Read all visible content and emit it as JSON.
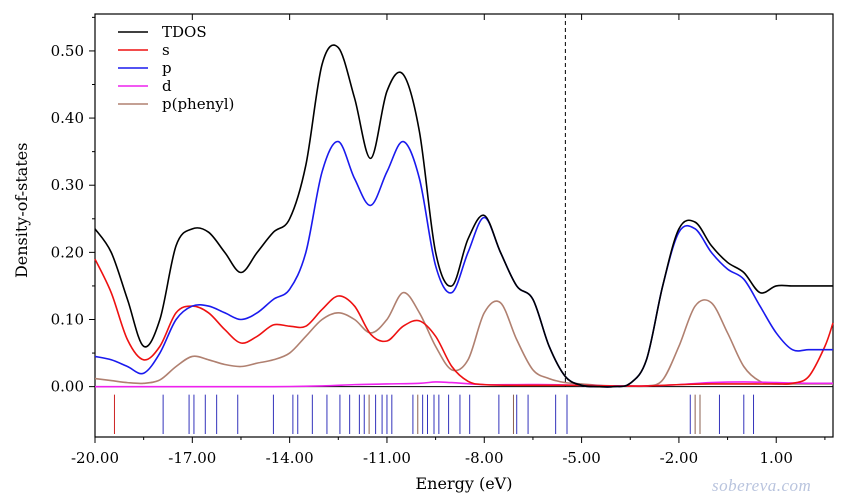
{
  "chart_data": {
    "type": "line",
    "xlabel": "Energy (eV)",
    "ylabel": "Density-of-states",
    "xlim": [
      -20.0,
      2.75
    ],
    "ylim": [
      -0.075,
      0.555
    ],
    "xticks": [
      -20,
      -17,
      -14,
      -11,
      -8,
      -5,
      -2,
      1
    ],
    "xtick_labels": [
      "-20.00",
      "-17.00",
      "-14.00",
      "-11.00",
      "-8.00",
      "-5.00",
      "-2.00",
      "1.00"
    ],
    "yticks": [
      0.0,
      0.1,
      0.2,
      0.3,
      0.4,
      0.5
    ],
    "ytick_labels": [
      "0.00",
      "0.10",
      "0.20",
      "0.30",
      "0.40",
      "0.50"
    ],
    "homo_line_x": -5.5,
    "legend_position": "top-left",
    "series": [
      {
        "name": "TDOS",
        "color": "#000000",
        "x": [
          -20.0,
          -19.5,
          -19.0,
          -18.5,
          -18.0,
          -17.5,
          -17.0,
          -16.5,
          -16.0,
          -15.5,
          -15.0,
          -14.5,
          -14.0,
          -13.5,
          -13.0,
          -12.5,
          -12.0,
          -11.5,
          -11.0,
          -10.5,
          -10.0,
          -9.5,
          -9.0,
          -8.5,
          -8.0,
          -7.5,
          -7.0,
          -6.5,
          -6.0,
          -5.5,
          -5.0,
          -4.5,
          -4.0,
          -3.5,
          -3.0,
          -2.5,
          -2.0,
          -1.5,
          -1.0,
          -0.5,
          0.0,
          0.5,
          1.0,
          1.5,
          2.0,
          2.5,
          2.75
        ],
        "y": [
          0.235,
          0.2,
          0.13,
          0.06,
          0.1,
          0.21,
          0.235,
          0.23,
          0.2,
          0.17,
          0.2,
          0.23,
          0.25,
          0.33,
          0.48,
          0.505,
          0.43,
          0.34,
          0.44,
          0.465,
          0.38,
          0.2,
          0.15,
          0.22,
          0.255,
          0.2,
          0.15,
          0.13,
          0.06,
          0.015,
          0.002,
          0.0,
          0.0,
          0.005,
          0.04,
          0.15,
          0.235,
          0.245,
          0.21,
          0.185,
          0.17,
          0.14,
          0.15,
          0.15,
          0.15,
          0.15,
          0.15
        ]
      },
      {
        "name": "s",
        "color": "#ee1111",
        "x": [
          -20.0,
          -19.5,
          -19.0,
          -18.5,
          -18.0,
          -17.5,
          -17.0,
          -16.5,
          -16.0,
          -15.5,
          -15.0,
          -14.5,
          -14.0,
          -13.5,
          -13.0,
          -12.5,
          -12.0,
          -11.5,
          -11.0,
          -10.5,
          -10.0,
          -9.5,
          -9.0,
          -8.5,
          -8.0,
          -7.0,
          -6.0,
          -5.0,
          -4.0,
          -3.0,
          -2.0,
          -1.0,
          0.0,
          1.0,
          1.5,
          2.0,
          2.5,
          2.75
        ],
        "y": [
          0.19,
          0.14,
          0.07,
          0.04,
          0.06,
          0.11,
          0.12,
          0.11,
          0.085,
          0.065,
          0.075,
          0.092,
          0.09,
          0.09,
          0.115,
          0.135,
          0.12,
          0.078,
          0.068,
          0.09,
          0.098,
          0.075,
          0.03,
          0.008,
          0.003,
          0.002,
          0.002,
          0.002,
          0.001,
          0.001,
          0.003,
          0.004,
          0.004,
          0.004,
          0.005,
          0.015,
          0.06,
          0.095
        ]
      },
      {
        "name": "p",
        "color": "#1a1aee",
        "x": [
          -20.0,
          -19.5,
          -19.0,
          -18.5,
          -18.0,
          -17.5,
          -17.0,
          -16.5,
          -16.0,
          -15.5,
          -15.0,
          -14.5,
          -14.0,
          -13.5,
          -13.0,
          -12.5,
          -12.0,
          -11.5,
          -11.0,
          -10.5,
          -10.0,
          -9.5,
          -9.0,
          -8.5,
          -8.0,
          -7.5,
          -7.0,
          -6.5,
          -6.0,
          -5.5,
          -5.0,
          -4.5,
          -4.0,
          -3.5,
          -3.0,
          -2.5,
          -2.0,
          -1.5,
          -1.0,
          -0.5,
          0.0,
          0.5,
          1.0,
          1.5,
          2.0,
          2.5,
          2.75
        ],
        "y": [
          0.045,
          0.04,
          0.03,
          0.02,
          0.05,
          0.1,
          0.12,
          0.12,
          0.11,
          0.1,
          0.11,
          0.13,
          0.145,
          0.2,
          0.32,
          0.365,
          0.31,
          0.27,
          0.32,
          0.365,
          0.31,
          0.18,
          0.14,
          0.2,
          0.252,
          0.2,
          0.15,
          0.13,
          0.06,
          0.015,
          0.002,
          0.0,
          0.0,
          0.005,
          0.04,
          0.15,
          0.23,
          0.235,
          0.2,
          0.175,
          0.16,
          0.12,
          0.08,
          0.055,
          0.055,
          0.055,
          0.055
        ]
      },
      {
        "name": "d",
        "color": "#ee22ee",
        "x": [
          -20.0,
          -16.0,
          -14.5,
          -13.0,
          -12.0,
          -11.0,
          -10.0,
          -9.5,
          -9.0,
          -8.0,
          -7.0,
          -6.0,
          -5.0,
          -4.0,
          -3.0,
          -2.0,
          -1.0,
          0.0,
          1.0,
          2.0,
          2.75
        ],
        "y": [
          0.0,
          0.0,
          0.0,
          0.001,
          0.003,
          0.004,
          0.005,
          0.007,
          0.006,
          0.003,
          0.003,
          0.003,
          0.002,
          0.001,
          0.001,
          0.003,
          0.006,
          0.007,
          0.006,
          0.005,
          0.005
        ]
      },
      {
        "name": "p(phenyl)",
        "color": "#b08070",
        "x": [
          -20.0,
          -19.5,
          -19.0,
          -18.5,
          -18.0,
          -17.5,
          -17.0,
          -16.5,
          -16.0,
          -15.5,
          -15.0,
          -14.5,
          -14.0,
          -13.5,
          -13.0,
          -12.5,
          -12.0,
          -11.5,
          -11.0,
          -10.5,
          -10.0,
          -9.5,
          -9.0,
          -8.5,
          -8.0,
          -7.5,
          -7.0,
          -6.5,
          -6.0,
          -5.5,
          -5.0,
          -4.5,
          -4.0,
          -3.5,
          -3.0,
          -2.5,
          -2.0,
          -1.5,
          -1.0,
          -0.5,
          0.0,
          0.5,
          1.0,
          1.5,
          2.0,
          2.5,
          2.75
        ],
        "y": [
          0.012,
          0.009,
          0.006,
          0.005,
          0.01,
          0.03,
          0.045,
          0.04,
          0.033,
          0.03,
          0.035,
          0.04,
          0.05,
          0.075,
          0.1,
          0.11,
          0.1,
          0.08,
          0.1,
          0.14,
          0.11,
          0.06,
          0.025,
          0.04,
          0.11,
          0.125,
          0.07,
          0.025,
          0.012,
          0.006,
          0.004,
          0.002,
          0.001,
          0.001,
          0.001,
          0.01,
          0.06,
          0.12,
          0.125,
          0.08,
          0.03,
          0.008,
          0.004,
          0.004,
          0.004,
          0.004,
          0.004
        ]
      }
    ],
    "state_lines": [
      {
        "x": -19.4,
        "color": "#cc2222"
      },
      {
        "x": -17.9,
        "color": "#3333bb"
      },
      {
        "x": -17.1,
        "color": "#3333bb"
      },
      {
        "x": -16.95,
        "color": "#3333bb"
      },
      {
        "x": -16.6,
        "color": "#3333bb"
      },
      {
        "x": -16.25,
        "color": "#3333bb"
      },
      {
        "x": -15.6,
        "color": "#3333bb"
      },
      {
        "x": -14.5,
        "color": "#3333bb"
      },
      {
        "x": -13.9,
        "color": "#3333bb"
      },
      {
        "x": -13.75,
        "color": "#3333bb"
      },
      {
        "x": -13.3,
        "color": "#3333bb"
      },
      {
        "x": -12.85,
        "color": "#3333bb"
      },
      {
        "x": -12.45,
        "color": "#3333bb"
      },
      {
        "x": -12.15,
        "color": "#3333bb"
      },
      {
        "x": -11.85,
        "color": "#3333bb"
      },
      {
        "x": -11.7,
        "color": "#3333bb"
      },
      {
        "x": -11.55,
        "color": "#8b6050"
      },
      {
        "x": -11.35,
        "color": "#3333bb"
      },
      {
        "x": -11.15,
        "color": "#3333bb"
      },
      {
        "x": -11.0,
        "color": "#3333bb"
      },
      {
        "x": -10.85,
        "color": "#3333bb"
      },
      {
        "x": -10.2,
        "color": "#3333bb"
      },
      {
        "x": -10.05,
        "color": "#8b6050"
      },
      {
        "x": -9.9,
        "color": "#3333bb"
      },
      {
        "x": -9.75,
        "color": "#3333bb"
      },
      {
        "x": -9.55,
        "color": "#3333bb"
      },
      {
        "x": -9.4,
        "color": "#3333bb"
      },
      {
        "x": -9.1,
        "color": "#3333bb"
      },
      {
        "x": -8.75,
        "color": "#3333bb"
      },
      {
        "x": -8.45,
        "color": "#3333bb"
      },
      {
        "x": -7.55,
        "color": "#3333bb"
      },
      {
        "x": -7.1,
        "color": "#8b6050"
      },
      {
        "x": -7.0,
        "color": "#3333bb"
      },
      {
        "x": -6.65,
        "color": "#3333bb"
      },
      {
        "x": -5.8,
        "color": "#3333bb"
      },
      {
        "x": -5.45,
        "color": "#3333bb"
      },
      {
        "x": -1.65,
        "color": "#3333bb"
      },
      {
        "x": -1.5,
        "color": "#8b6050"
      },
      {
        "x": -1.35,
        "color": "#8b6050"
      },
      {
        "x": -0.75,
        "color": "#3333bb"
      },
      {
        "x": 0.0,
        "color": "#3333bb"
      },
      {
        "x": 0.3,
        "color": "#3333bb"
      }
    ]
  },
  "watermark": "sobereva.com"
}
